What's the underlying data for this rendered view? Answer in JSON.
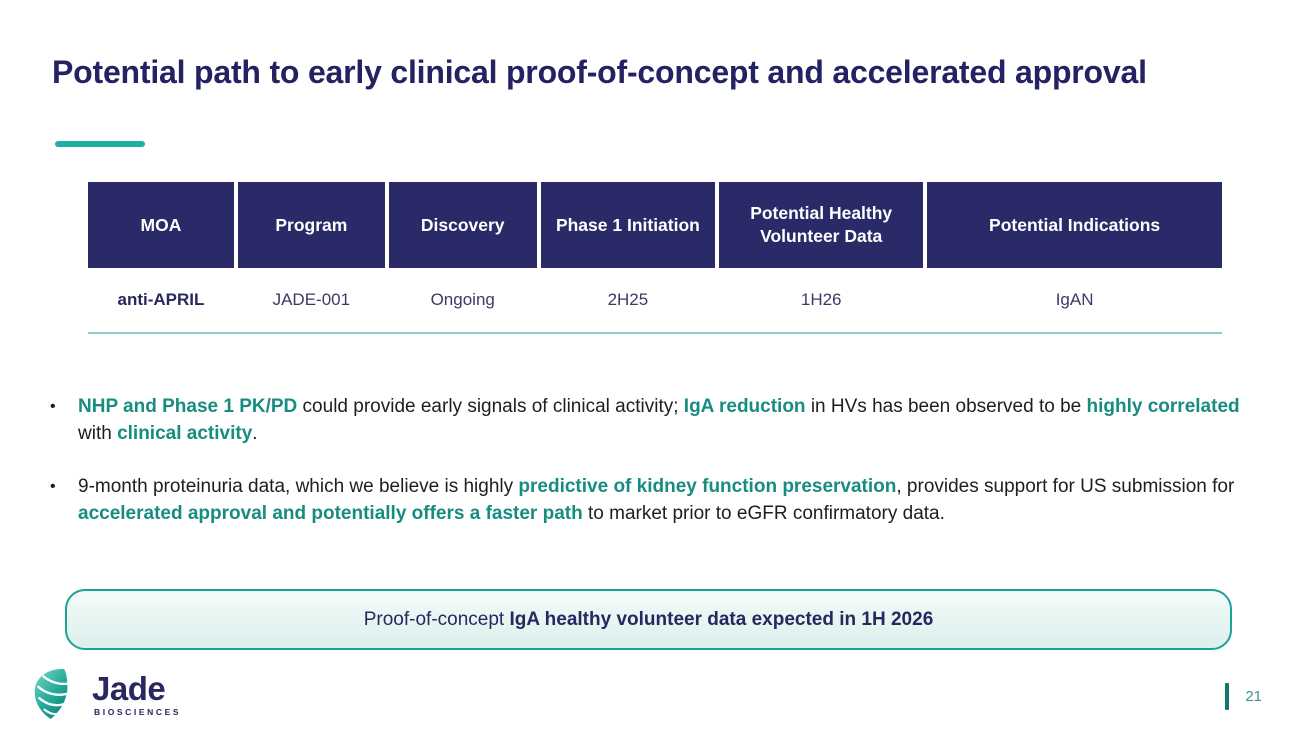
{
  "slide": {
    "title": "Potential path to early clinical proof-of-concept and accelerated approval",
    "page_number": "21"
  },
  "colors": {
    "navy": "#2B2A68",
    "title_navy": "#232262",
    "teal_accent": "#21AEA2",
    "teal_highlight_text": "#178C80",
    "table_underline": "#8ECBC6",
    "callout_border": "#1DA396",
    "callout_bg_top": "#F4FBFA",
    "callout_bg_bottom": "#DCF0ED",
    "body_text": "#1E1E1E"
  },
  "table": {
    "headers": [
      "MOA",
      "Program",
      "Discovery",
      "Phase 1 Initiation",
      "Potential Healthy Volunteer Data",
      "Potential Indications"
    ],
    "rows": [
      [
        "anti-APRIL",
        "JADE-001",
        "Ongoing",
        "2H25",
        "1H26",
        "IgAN"
      ]
    ]
  },
  "bullets": {
    "marker": "•",
    "items": [
      {
        "segments": [
          {
            "text": "NHP and Phase 1 PK/PD",
            "cls": "hl"
          },
          {
            "text": " could provide early signals of clinical activity; ",
            "cls": ""
          },
          {
            "text": "IgA reduction",
            "cls": "hl"
          },
          {
            "text": " in HVs has been observed to be ",
            "cls": ""
          },
          {
            "text": "highly correlated",
            "cls": "hl"
          },
          {
            "text": " with ",
            "cls": ""
          },
          {
            "text": "clinical activity",
            "cls": "hl"
          },
          {
            "text": ".",
            "cls": ""
          }
        ]
      },
      {
        "segments": [
          {
            "text": "9-month proteinuria data, which we believe is highly ",
            "cls": ""
          },
          {
            "text": "predictive of kidney function preservation",
            "cls": "hl"
          },
          {
            "text": ", provides support for US submission for ",
            "cls": ""
          },
          {
            "text": "accelerated approval and potentially offers a faster path",
            "cls": "hl"
          },
          {
            "text": " to market prior to eGFR confirmatory data.",
            "cls": ""
          }
        ]
      }
    ]
  },
  "callout": {
    "segments": [
      {
        "text": "Proof-of-concept ",
        "cls": ""
      },
      {
        "text": "IgA healthy volunteer data expected in 1H 2026",
        "cls": "b"
      }
    ]
  },
  "logo": {
    "name": "Jade",
    "subtitle": "BIOSCIENCES"
  }
}
